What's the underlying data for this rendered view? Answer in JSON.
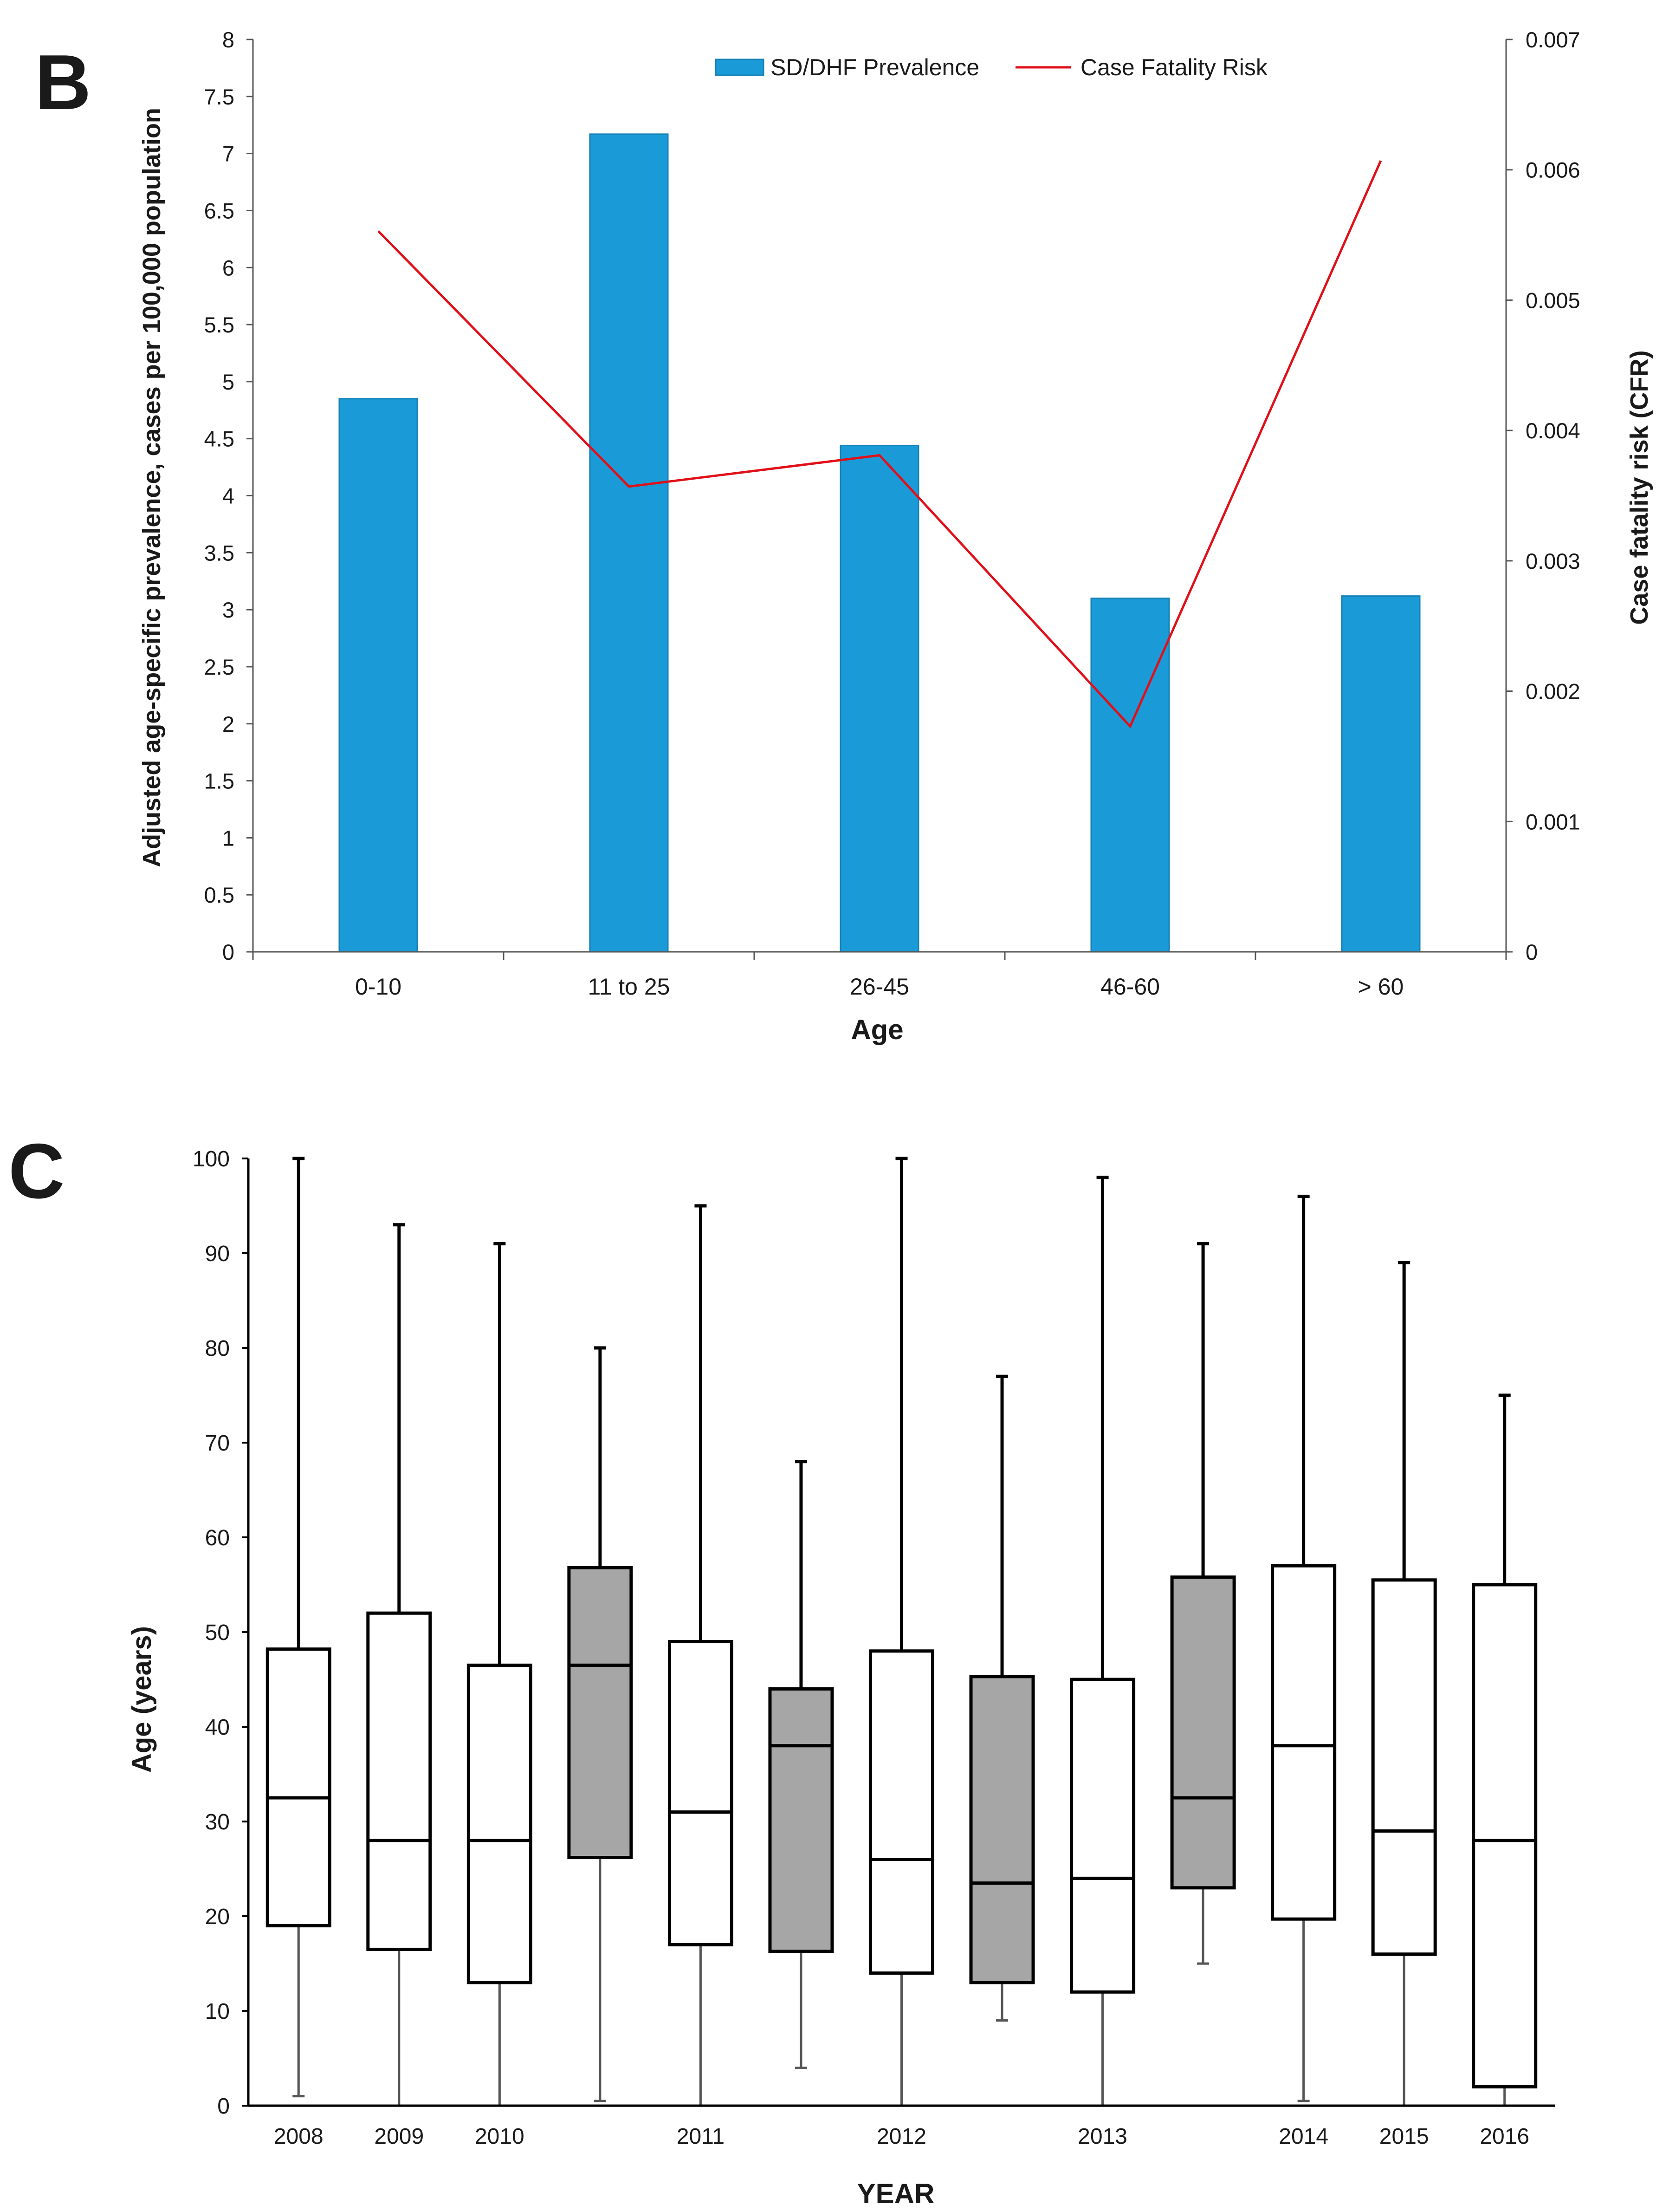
{
  "chart_data": [
    {
      "panel_letter": "B",
      "type": "bar+line",
      "categories": [
        "0-10",
        "11 to 25",
        "26-45",
        "46-60",
        "> 60"
      ],
      "series": [
        {
          "name": "SD/DHF Prevalence",
          "kind": "bar",
          "axis": "left",
          "values": [
            4.85,
            7.17,
            4.44,
            3.1,
            3.12
          ]
        },
        {
          "name": "Case Fatality Risk",
          "kind": "line",
          "axis": "right",
          "values": [
            0.00553,
            0.00357,
            0.00381,
            0.00173,
            0.00607
          ]
        }
      ],
      "xlabel": "Age",
      "ylabel": "Adjusted age-specific prevalence, cases per 100,000 population",
      "y2label": "Case fatality risk (CFR)",
      "ylim": [
        0,
        8
      ],
      "y2lim": [
        0,
        0.007
      ],
      "yticks": [
        "0",
        "0.5",
        "1",
        "1.5",
        "2",
        "2.5",
        "3",
        "3.5",
        "4",
        "4.5",
        "5",
        "5.5",
        "6",
        "6.5",
        "7",
        "7.5",
        "8"
      ],
      "y2ticks": [
        "0",
        "0.001",
        "0.002",
        "0.003",
        "0.004",
        "0.005",
        "0.006",
        "0.007"
      ],
      "legend_position": "top-center",
      "colors": {
        "bar": "#1a9bd7",
        "bar_edge": "#1580b5",
        "line": "#e0101a"
      }
    },
    {
      "panel_letter": "C",
      "type": "boxplot",
      "xlabel": "YEAR",
      "ylabel": "Age (years)",
      "ylim": [
        0,
        100
      ],
      "yticks": [
        "0",
        "10",
        "20",
        "30",
        "40",
        "50",
        "60",
        "70",
        "80",
        "90",
        "100"
      ],
      "boxes": [
        {
          "label": "2008",
          "min": 1,
          "q1": 19,
          "median": 32.5,
          "q3": 48.2,
          "max": 100,
          "shaded": false
        },
        {
          "label": "2009",
          "min": 0,
          "q1": 16.5,
          "median": 28,
          "q3": 52,
          "max": 93,
          "shaded": false
        },
        {
          "label": "2010",
          "min": 0,
          "q1": 13,
          "median": 28,
          "q3": 46.5,
          "max": 91,
          "shaded": false
        },
        {
          "label": "",
          "min": 0.5,
          "q1": 26.2,
          "median": 46.5,
          "q3": 56.8,
          "max": 80,
          "shaded": true
        },
        {
          "label": "2011",
          "min": 0,
          "q1": 17,
          "median": 31,
          "q3": 49,
          "max": 95,
          "shaded": false
        },
        {
          "label": "",
          "min": 4,
          "q1": 16.3,
          "median": 38,
          "q3": 44,
          "max": 68,
          "shaded": true
        },
        {
          "label": "2012",
          "min": 0,
          "q1": 14,
          "median": 26,
          "q3": 48,
          "max": 100,
          "shaded": false
        },
        {
          "label": "",
          "min": 9,
          "q1": 13,
          "median": 23.5,
          "q3": 45.3,
          "max": 77,
          "shaded": true
        },
        {
          "label": "2013",
          "min": 0,
          "q1": 12,
          "median": 24,
          "q3": 45,
          "max": 98,
          "shaded": false
        },
        {
          "label": "",
          "min": 15,
          "q1": 23,
          "median": 32.5,
          "q3": 55.8,
          "max": 91,
          "shaded": true
        },
        {
          "label": "2014",
          "min": 0.5,
          "q1": 19.7,
          "median": 38,
          "q3": 57,
          "max": 96,
          "shaded": false
        },
        {
          "label": "2015",
          "min": 0,
          "q1": 16,
          "median": 29,
          "q3": 55.5,
          "max": 89,
          "shaded": false
        },
        {
          "label": "2016",
          "min": 0,
          "q1": 2,
          "median": 28,
          "q3": 55,
          "max": 75,
          "shaded": false
        }
      ],
      "colors": {
        "box_fill": "#ffffff",
        "box_shaded": "#a6a6a6",
        "lower_whisker": "#555555",
        "edge": "#000000"
      }
    }
  ]
}
